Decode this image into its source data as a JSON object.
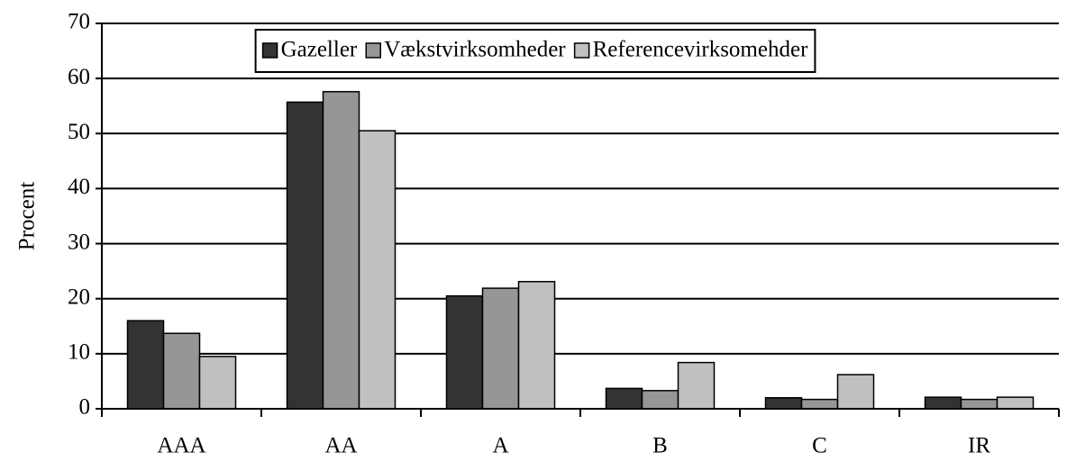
{
  "chart_data": {
    "type": "bar",
    "y_label": "Procent",
    "categories": [
      "AAA",
      "AA",
      "A",
      "B",
      "C",
      "IR"
    ],
    "series": [
      {
        "name": "Gazeller",
        "color": "#333333",
        "values": [
          16.0,
          55.7,
          20.5,
          3.7,
          2.0,
          2.1
        ]
      },
      {
        "name": "Vækstvirksomheder",
        "color": "#969696",
        "values": [
          13.7,
          57.6,
          21.9,
          3.3,
          1.7,
          1.7
        ]
      },
      {
        "name": "Referencevirksomehder",
        "color": "#c0c0c0",
        "values": [
          9.5,
          50.5,
          23.1,
          8.4,
          6.2,
          2.1
        ]
      }
    ],
    "ylim": [
      0,
      70
    ],
    "yticks": [
      0,
      10,
      20,
      30,
      40,
      50,
      60,
      70
    ],
    "grid": true,
    "legend": "top"
  }
}
